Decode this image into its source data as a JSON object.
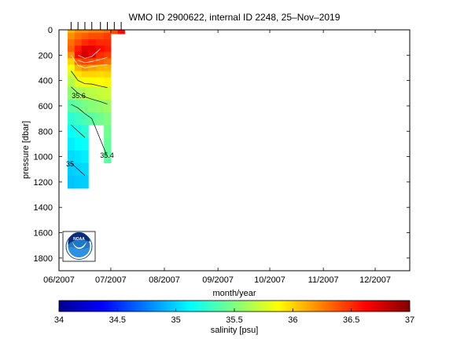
{
  "chart_data": [
    {
      "type": "heatmap",
      "title": "WMO ID 2900622, internal ID 2248, 25–Nov–2019",
      "xlabel": "month/year",
      "ylabel": "pressure [dbar]",
      "x_ticks": [
        "06/2007",
        "07/2007",
        "08/2007",
        "09/2007",
        "10/2007",
        "11/2007",
        "12/2007"
      ],
      "y_ticks": [
        0,
        200,
        400,
        600,
        800,
        1000,
        1200,
        1400,
        1600,
        1800
      ],
      "xlim": [
        "2007-06-01",
        "2007-12-21"
      ],
      "ylim": [
        1900,
        0
      ],
      "y_reversed": true,
      "profile_dates": [
        "2007-06-08",
        "2007-06-12",
        "2007-06-16",
        "2007-06-20",
        "2007-06-25",
        "2007-06-29",
        "2007-07-03",
        "2007-07-07"
      ],
      "depths": [
        0,
        50,
        100,
        150,
        200,
        250,
        300,
        350,
        400,
        500,
        600,
        700,
        800,
        900,
        1000,
        1100,
        1200
      ],
      "salinity_profiles": [
        [
          36.1,
          36.2,
          36.3,
          36.35,
          36.2,
          36.0,
          35.85,
          35.75,
          35.65,
          35.55,
          35.38,
          35.25,
          35.15,
          35.08,
          35.02,
          34.98,
          34.95
        ],
        [
          36.2,
          36.3,
          36.4,
          36.55,
          36.6,
          36.35,
          36.1,
          35.95,
          35.8,
          35.6,
          35.42,
          35.3,
          35.2,
          35.12,
          35.05,
          35.0,
          34.97
        ],
        [
          36.2,
          36.35,
          36.5,
          36.7,
          36.75,
          36.45,
          36.2,
          36.0,
          35.85,
          35.65,
          35.48,
          35.35,
          35.25,
          35.15,
          35.08,
          35.02,
          34.98
        ],
        [
          36.25,
          36.4,
          36.55,
          36.7,
          36.65,
          36.4,
          36.15,
          36.0,
          35.85,
          35.67,
          35.52,
          35.4,
          null,
          null,
          null,
          null,
          null
        ],
        [
          36.25,
          36.4,
          36.5,
          36.6,
          36.5,
          36.35,
          36.1,
          35.98,
          35.88,
          35.7,
          35.55,
          35.45,
          null,
          null,
          null,
          null,
          null
        ],
        [
          36.3,
          36.45,
          36.5,
          36.55,
          36.45,
          36.3,
          36.1,
          36.0,
          35.9,
          35.72,
          35.58,
          35.5,
          35.45,
          35.42,
          35.4,
          null,
          null
        ],
        [
          36.4,
          null,
          null,
          null,
          null,
          null,
          null,
          null,
          null,
          null,
          null,
          null,
          null,
          null,
          null,
          null,
          null
        ],
        [
          36.6,
          null,
          null,
          null,
          null,
          null,
          null,
          null,
          null,
          null,
          null,
          null,
          null,
          null,
          null,
          null,
          null
        ]
      ],
      "contour_labels": [
        "35.6",
        "35",
        "35.4"
      ],
      "colorbar": {
        "label": "salinity [psu]",
        "range": [
          34,
          37
        ],
        "ticks": [
          "34",
          "34.5",
          "35",
          "35.5",
          "36",
          "36.5",
          "37"
        ],
        "colormap": "jet"
      },
      "logo": "noaa-logo",
      "grid": false
    }
  ]
}
